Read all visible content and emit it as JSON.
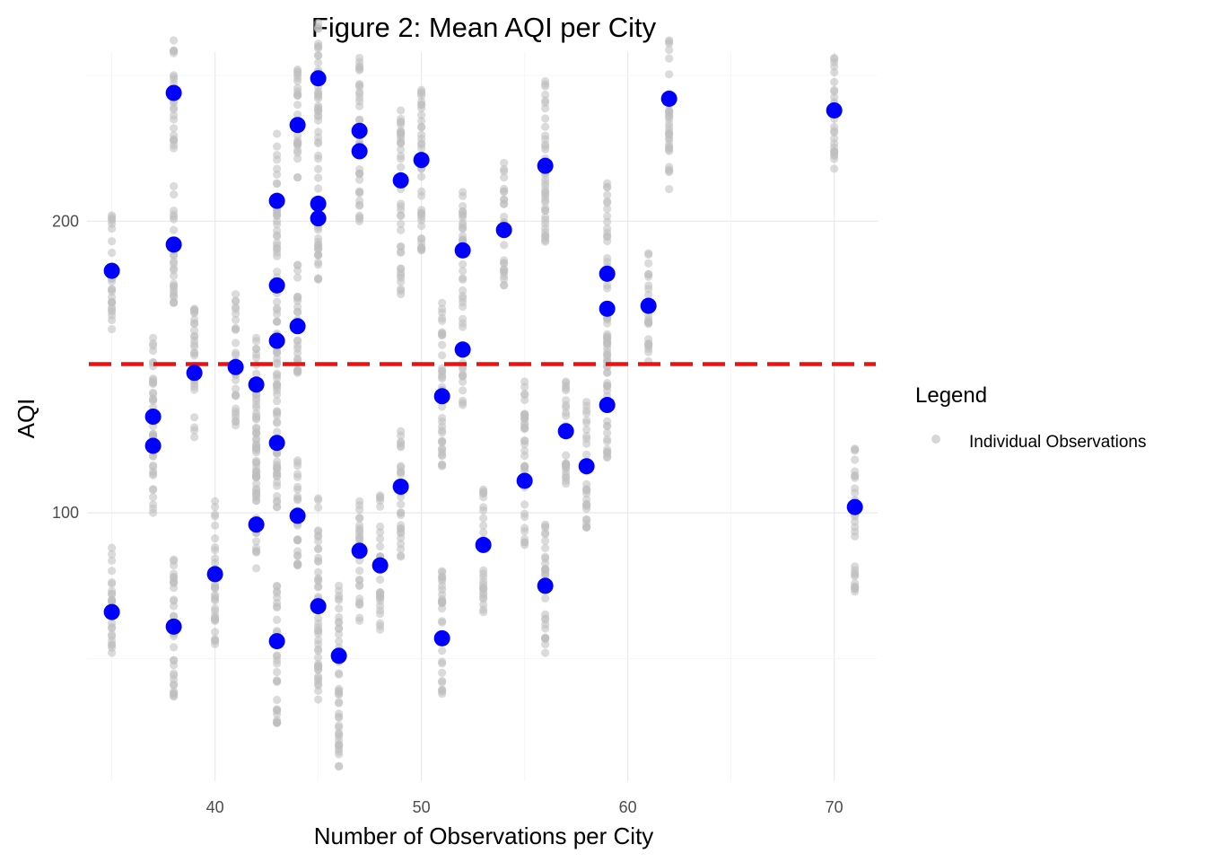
{
  "chart_data": {
    "type": "scatter",
    "title": "Figure 2: Mean AQI per City",
    "xlabel": "Number of Observations per City",
    "ylabel": "AQI",
    "xlim": [
      33.8,
      72.1
    ],
    "ylim": [
      8,
      258
    ],
    "x_ticks": [
      40,
      50,
      60,
      70
    ],
    "y_ticks": [
      100,
      200
    ],
    "grid": true,
    "reference_line": {
      "y": 151,
      "style": "dashed",
      "color": "#ee1111"
    },
    "legend": {
      "title": "Legend",
      "position": "right",
      "entries": [
        "Individual Observations"
      ]
    },
    "colors": {
      "observations": "#bdbdbd",
      "means": "#0000ff"
    },
    "series": [
      {
        "name": "Individual Observations",
        "clusters": [
          {
            "x": 35,
            "min": 52,
            "max": 88
          },
          {
            "x": 35,
            "min": 163,
            "max": 202
          },
          {
            "x": 37,
            "min": 100,
            "max": 160
          },
          {
            "x": 38,
            "min": 37,
            "max": 84
          },
          {
            "x": 38,
            "min": 172,
            "max": 212
          },
          {
            "x": 38,
            "min": 225,
            "max": 262
          },
          {
            "x": 39,
            "min": 126,
            "max": 170
          },
          {
            "x": 40,
            "min": 55,
            "max": 104
          },
          {
            "x": 41,
            "min": 130,
            "max": 175
          },
          {
            "x": 42,
            "min": 81,
            "max": 125
          },
          {
            "x": 42,
            "min": 110,
            "max": 160
          },
          {
            "x": 43,
            "min": 28,
            "max": 75
          },
          {
            "x": 43,
            "min": 102,
            "max": 230
          },
          {
            "x": 44,
            "min": 82,
            "max": 118
          },
          {
            "x": 44,
            "min": 148,
            "max": 185
          },
          {
            "x": 44,
            "min": 215,
            "max": 252
          },
          {
            "x": 45,
            "min": 36,
            "max": 105
          },
          {
            "x": 45,
            "min": 180,
            "max": 268
          },
          {
            "x": 46,
            "min": 13,
            "max": 75
          },
          {
            "x": 47,
            "min": 63,
            "max": 104
          },
          {
            "x": 47,
            "min": 200,
            "max": 256
          },
          {
            "x": 48,
            "min": 60,
            "max": 106
          },
          {
            "x": 49,
            "min": 85,
            "max": 128
          },
          {
            "x": 49,
            "min": 175,
            "max": 238
          },
          {
            "x": 50,
            "min": 190,
            "max": 245
          },
          {
            "x": 51,
            "min": 38,
            "max": 80
          },
          {
            "x": 51,
            "min": 116,
            "max": 172
          },
          {
            "x": 52,
            "min": 137,
            "max": 210
          },
          {
            "x": 53,
            "min": 66,
            "max": 108
          },
          {
            "x": 54,
            "min": 178,
            "max": 220
          },
          {
            "x": 55,
            "min": 89,
            "max": 145
          },
          {
            "x": 56,
            "min": 52,
            "max": 96
          },
          {
            "x": 56,
            "min": 193,
            "max": 248
          },
          {
            "x": 57,
            "min": 110,
            "max": 145
          },
          {
            "x": 58,
            "min": 95,
            "max": 138
          },
          {
            "x": 59,
            "min": 119,
            "max": 213
          },
          {
            "x": 61,
            "min": 152,
            "max": 189
          },
          {
            "x": 62,
            "min": 211,
            "max": 262
          },
          {
            "x": 70,
            "min": 218,
            "max": 256
          },
          {
            "x": 71,
            "min": 73,
            "max": 122
          }
        ]
      },
      {
        "name": "",
        "points": [
          {
            "x": 35,
            "y": 66
          },
          {
            "x": 35,
            "y": 183
          },
          {
            "x": 37,
            "y": 133
          },
          {
            "x": 37,
            "y": 123
          },
          {
            "x": 38,
            "y": 61
          },
          {
            "x": 38,
            "y": 192
          },
          {
            "x": 38,
            "y": 244
          },
          {
            "x": 39,
            "y": 148
          },
          {
            "x": 40,
            "y": 79
          },
          {
            "x": 41,
            "y": 150
          },
          {
            "x": 42,
            "y": 96
          },
          {
            "x": 42,
            "y": 144
          },
          {
            "x": 43,
            "y": 56
          },
          {
            "x": 43,
            "y": 124
          },
          {
            "x": 43,
            "y": 159
          },
          {
            "x": 43,
            "y": 178
          },
          {
            "x": 43,
            "y": 207
          },
          {
            "x": 44,
            "y": 99
          },
          {
            "x": 44,
            "y": 164
          },
          {
            "x": 44,
            "y": 233
          },
          {
            "x": 45,
            "y": 68
          },
          {
            "x": 45,
            "y": 201
          },
          {
            "x": 45,
            "y": 206
          },
          {
            "x": 45,
            "y": 249
          },
          {
            "x": 46,
            "y": 51
          },
          {
            "x": 47,
            "y": 87
          },
          {
            "x": 47,
            "y": 224
          },
          {
            "x": 47,
            "y": 231
          },
          {
            "x": 48,
            "y": 82
          },
          {
            "x": 49,
            "y": 109
          },
          {
            "x": 49,
            "y": 214
          },
          {
            "x": 50,
            "y": 221
          },
          {
            "x": 51,
            "y": 57
          },
          {
            "x": 51,
            "y": 140
          },
          {
            "x": 52,
            "y": 156
          },
          {
            "x": 52,
            "y": 190
          },
          {
            "x": 53,
            "y": 89
          },
          {
            "x": 54,
            "y": 197
          },
          {
            "x": 55,
            "y": 111
          },
          {
            "x": 56,
            "y": 75
          },
          {
            "x": 56,
            "y": 219
          },
          {
            "x": 57,
            "y": 128
          },
          {
            "x": 58,
            "y": 116
          },
          {
            "x": 59,
            "y": 137
          },
          {
            "x": 59,
            "y": 170
          },
          {
            "x": 59,
            "y": 182
          },
          {
            "x": 61,
            "y": 171
          },
          {
            "x": 62,
            "y": 242
          },
          {
            "x": 70,
            "y": 238
          },
          {
            "x": 71,
            "y": 102
          }
        ]
      }
    ]
  }
}
